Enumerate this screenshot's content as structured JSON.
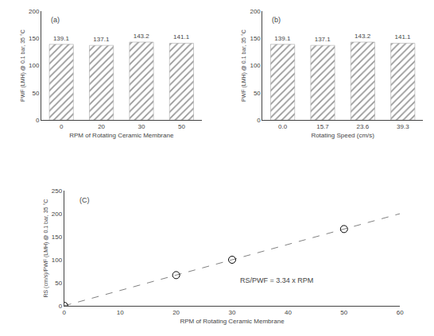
{
  "chart_data": [
    {
      "type": "bar",
      "categories": [
        "0",
        "20",
        "30",
        "50"
      ],
      "values": [
        139.1,
        137.1,
        143.2,
        141.1
      ],
      "xlabel": "RPM of Rotating Ceramic Membrane",
      "ylabel": "PWF (LMH) @ 0.1 bar, 35 °C",
      "annotations": [
        "(a)"
      ],
      "ylim": [
        0,
        200
      ],
      "yticks": [
        0,
        50,
        100,
        150,
        200
      ],
      "color": "#e8e8e8",
      "data_labels": true,
      "grid": false
    },
    {
      "type": "bar",
      "categories": [
        "0.0",
        "15.7",
        "23.6",
        "39.3"
      ],
      "values": [
        139.1,
        137.1,
        143.2,
        141.1
      ],
      "xlabel": "Rotating Speed (cm/s)",
      "ylabel": "PWF (LMH) @ 0.1 bar, 35 °C",
      "annotations": [
        "(b)"
      ],
      "ylim": [
        0,
        200
      ],
      "yticks": [
        0,
        50,
        100,
        150,
        200
      ],
      "color": "#e8e8e8",
      "data_labels": true,
      "grid": false
    },
    {
      "type": "scatter",
      "xlabel": "RPM of Rotating Ceramic Membrane",
      "ylabel": "RS (cm/s)/PWF (LMH) @ 0.1 bar, 35 °C",
      "annotations": [
        "(C)",
        "RS/PWF = 3.34 x RPM"
      ],
      "xlim": [
        0,
        60
      ],
      "xticks": [
        0,
        10,
        20,
        30,
        40,
        50,
        60
      ],
      "ylim": [
        0,
        250
      ],
      "yticks": [
        0,
        50,
        100,
        150,
        200,
        250
      ],
      "grid": false,
      "series": [
        {
          "type": "line",
          "line_style": "dashed",
          "color": "gray",
          "x": [
            0,
            60
          ],
          "values": [
            0,
            200.4
          ]
        },
        {
          "type": "scatter",
          "marker": "open circle",
          "color": "black",
          "x": [
            0,
            20,
            30,
            50
          ],
          "values": [
            0,
            66.8,
            100.2,
            167.0
          ]
        }
      ]
    }
  ]
}
